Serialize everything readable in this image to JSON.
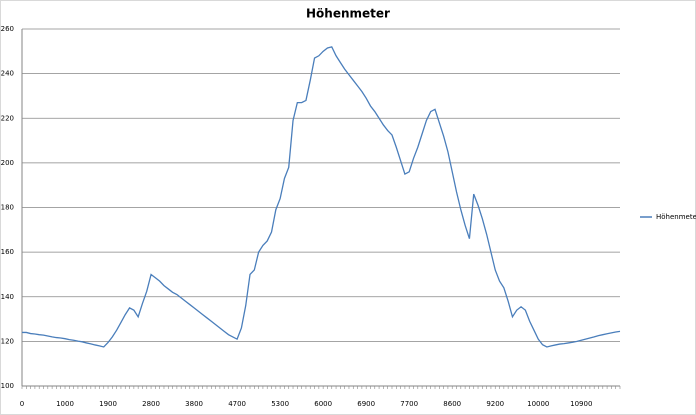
{
  "chart_data": {
    "type": "line",
    "title": "Höhenmeter",
    "categories": [
      "0",
      null,
      null,
      null,
      null,
      null,
      null,
      null,
      null,
      null,
      "1000",
      null,
      null,
      null,
      null,
      null,
      null,
      null,
      null,
      null,
      "1900",
      null,
      null,
      null,
      null,
      null,
      null,
      null,
      null,
      null,
      "2800",
      null,
      null,
      null,
      null,
      null,
      null,
      null,
      null,
      null,
      "3800",
      null,
      null,
      null,
      null,
      null,
      null,
      null,
      null,
      null,
      "4700",
      null,
      null,
      null,
      null,
      null,
      null,
      null,
      null,
      null,
      "5300",
      null,
      null,
      null,
      null,
      null,
      null,
      null,
      null,
      null,
      "6000",
      null,
      null,
      null,
      null,
      null,
      null,
      null,
      null,
      null,
      "6900",
      null,
      null,
      null,
      null,
      null,
      null,
      null,
      null,
      null,
      "7700",
      null,
      null,
      null,
      null,
      null,
      null,
      null,
      null,
      null,
      "8600",
      null,
      null,
      null,
      null,
      null,
      null,
      null,
      null,
      null,
      "9200",
      null,
      null,
      null,
      null,
      null,
      null,
      null,
      null,
      null,
      "10000",
      null,
      null,
      null,
      null,
      null,
      null,
      null,
      null,
      null,
      "10900",
      null,
      null,
      null,
      null,
      null,
      null,
      null,
      null,
      null
    ],
    "series": [
      {
        "name": "Höhenmeter",
        "color": "#4a7ebb",
        "values": [
          124,
          124,
          123.5,
          123.3,
          123,
          122.8,
          122.4,
          122,
          121.7,
          121.5,
          121.2,
          120.8,
          120.5,
          120.1,
          119.8,
          119.3,
          118.9,
          118.4,
          118,
          117.5,
          119.5,
          122,
          125,
          128.5,
          132,
          135,
          134,
          131,
          137,
          142.5,
          150,
          148.5,
          147,
          145,
          143.5,
          142,
          141,
          139.5,
          138,
          136.5,
          135,
          133.5,
          132,
          130.5,
          129,
          127.5,
          126,
          124.5,
          123,
          122,
          121,
          126,
          136,
          150,
          152,
          160,
          163,
          165,
          169,
          179,
          184,
          193,
          198,
          219,
          227,
          227,
          228,
          237,
          247,
          248,
          250,
          251.5,
          252,
          248,
          245,
          242,
          239.5,
          237,
          234.5,
          232,
          229,
          225.5,
          223,
          220,
          217,
          214.5,
          212.5,
          207,
          201,
          195,
          196,
          202,
          207,
          213,
          219,
          223,
          224,
          218,
          212,
          205,
          196,
          187,
          179,
          172,
          166,
          186,
          181,
          175,
          168,
          160,
          152,
          147,
          144,
          138,
          131,
          134,
          135.5,
          134,
          129,
          125,
          121,
          118.5,
          117.5,
          118,
          118.4,
          118.8,
          119,
          119.3,
          119.6,
          120,
          120.5,
          121,
          121.5,
          122,
          122.6,
          123,
          123.4,
          123.8,
          124.2,
          124.5
        ]
      }
    ],
    "ylim": [
      100,
      260
    ],
    "yticks": [
      100,
      120,
      140,
      160,
      180,
      200,
      220,
      240,
      260
    ],
    "grid": true,
    "legend": "right"
  }
}
